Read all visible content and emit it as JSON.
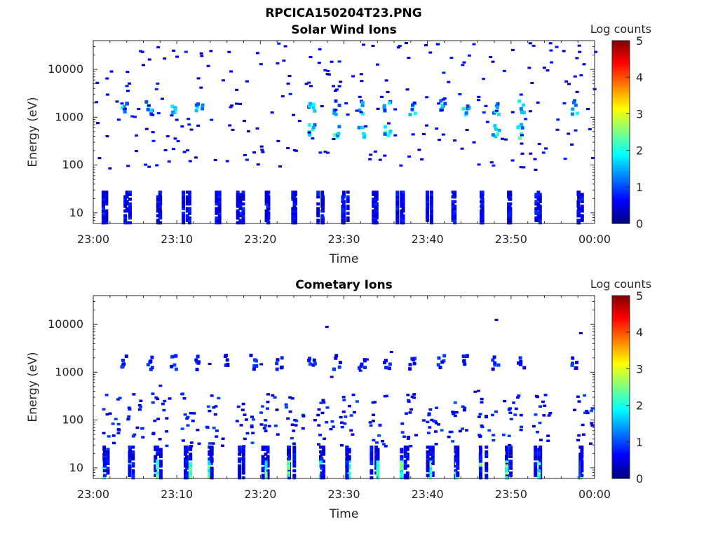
{
  "figure_title": "RPCICA150204T23.PNG",
  "chart_data": [
    {
      "type": "heatmap",
      "title": "Solar Wind Ions",
      "xlabel": "Time",
      "ylabel": "Energy (eV)",
      "x_range": [
        "23:00",
        "00:00"
      ],
      "x_ticks": [
        "23:00",
        "23:10",
        "23:20",
        "23:30",
        "23:40",
        "23:50",
        "00:00"
      ],
      "y_scale": "log",
      "y_range": [
        6,
        40000
      ],
      "y_ticks": [
        10,
        100,
        1000,
        10000
      ],
      "y_tick_labels": [
        "10",
        "100",
        "1000",
        "10000"
      ],
      "colorbar": {
        "label": "Log counts",
        "range": [
          0,
          5
        ],
        "ticks": [
          "0",
          "1",
          "2",
          "3",
          "4",
          "5"
        ],
        "colormap": "jet"
      },
      "features": [
        {
          "energy_band": "~10 eV",
          "note": "vertical streaks",
          "minutes": [
            1,
            4,
            7.5,
            11,
            14.5,
            17.5,
            20.5,
            24,
            27,
            30,
            33.5,
            36.5,
            40,
            43,
            46.5,
            49.5,
            53,
            58
          ]
        },
        {
          "energy_band": "~500 eV",
          "log_counts_peak": 2.3,
          "minutes": [
            26,
            29,
            32,
            35,
            48,
            51
          ]
        },
        {
          "energy_band": "~1600 eV",
          "log_counts_peak": 2,
          "minutes": [
            3.5,
            6.5,
            9.5,
            12.5,
            26,
            29,
            32,
            35,
            38,
            41.5,
            44.5,
            48,
            51,
            57.5
          ]
        }
      ]
    },
    {
      "type": "heatmap",
      "title": "Cometary Ions",
      "xlabel": "Time",
      "ylabel": "Energy (eV)",
      "x_range": [
        "23:00",
        "00:00"
      ],
      "x_ticks": [
        "23:00",
        "23:10",
        "23:20",
        "23:30",
        "23:40",
        "23:50",
        "00:00"
      ],
      "y_scale": "log",
      "y_range": [
        6,
        40000
      ],
      "y_ticks": [
        10,
        100,
        1000,
        10000
      ],
      "y_tick_labels": [
        "10",
        "100",
        "1000",
        "10000"
      ],
      "colorbar": {
        "label": "Log counts",
        "range": [
          0,
          5
        ],
        "ticks": [
          "0",
          "1",
          "2",
          "3",
          "4",
          "5"
        ],
        "colormap": "jet"
      },
      "features": [
        {
          "energy_band": "6-30 eV",
          "log_counts_peak": 2.7,
          "minutes": [
            1.5,
            4.5,
            7.5,
            11,
            14,
            17.5,
            20.5,
            23.5,
            27,
            30,
            33.5,
            37,
            40,
            43,
            46.5,
            49.5,
            53,
            58
          ]
        },
        {
          "energy_band": "30-300 eV",
          "note": "sparse blue counts",
          "minutes": [
            1.5,
            4.5,
            7.5,
            11,
            14,
            17.5,
            20.5,
            23.5,
            27,
            30,
            33.5,
            37,
            40,
            43,
            46.5,
            49.5,
            53,
            58
          ]
        },
        {
          "energy_band": "~1600 eV",
          "log_counts_peak": 1,
          "minutes": [
            3.5,
            6.5,
            9.5,
            12.5,
            16,
            19,
            22,
            26,
            29,
            32,
            35,
            38,
            41.5,
            44.5,
            48,
            51,
            57.5
          ]
        }
      ]
    }
  ]
}
